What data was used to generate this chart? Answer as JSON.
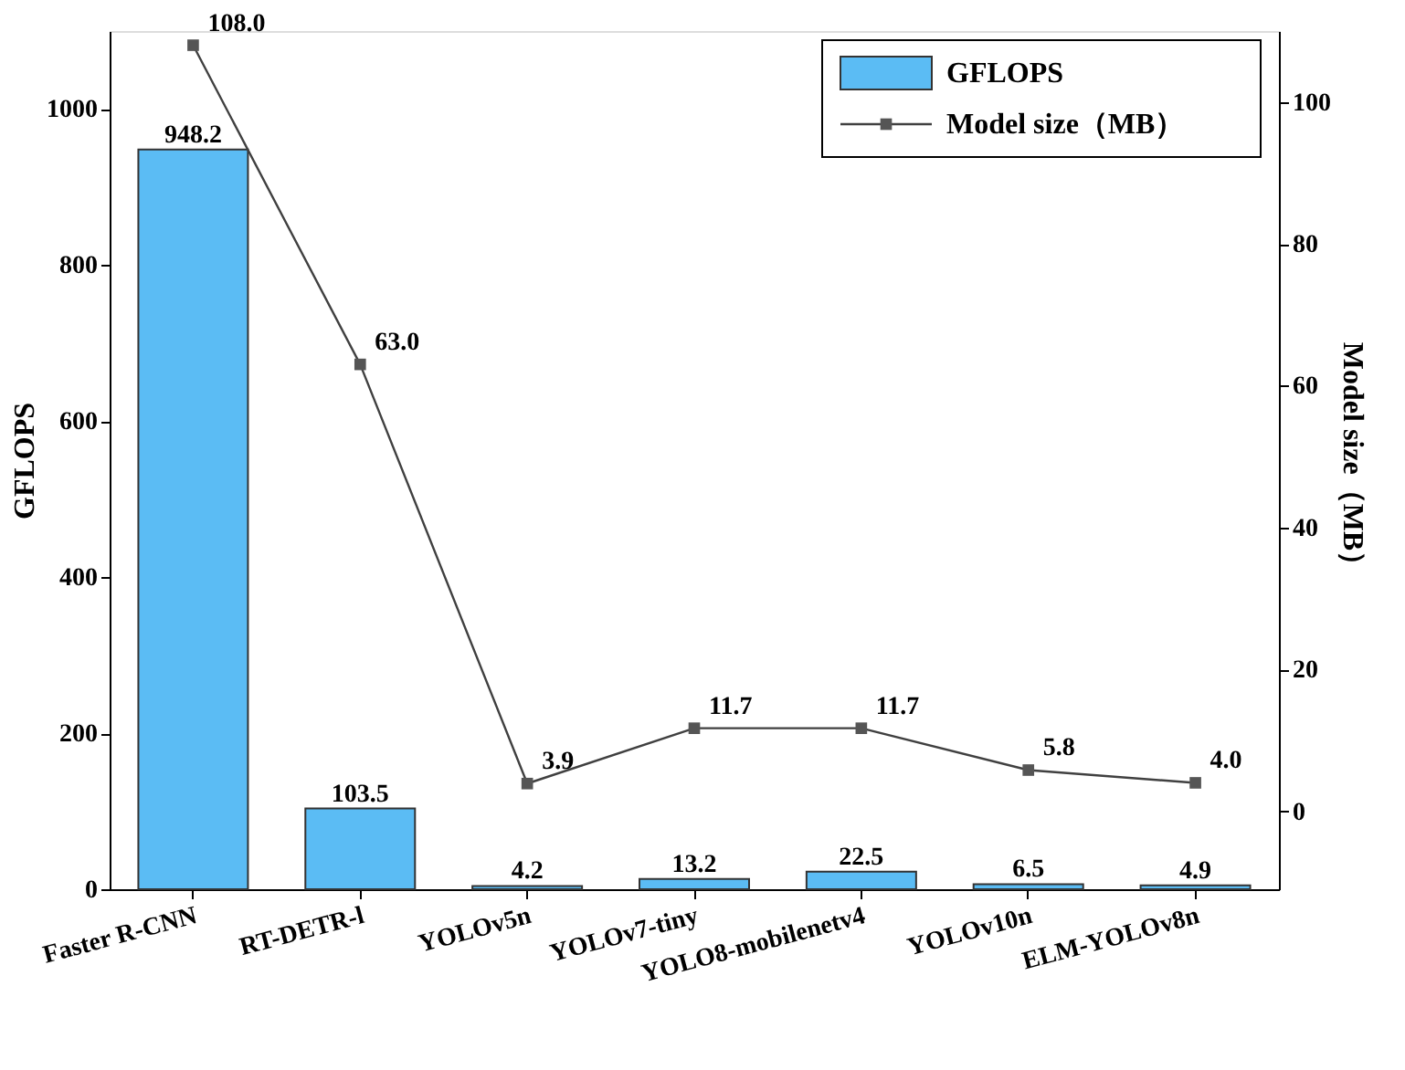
{
  "chart_data": {
    "type": "bar",
    "categories": [
      "Faster R-CNN",
      "RT-DETR-l",
      "YOLOv5n",
      "YOLOv7-tiny",
      "YOLO8-mobilenetv4",
      "YOLOv10n",
      "ELM-YOLOv8n"
    ],
    "series": [
      {
        "name": "GFLOPS",
        "color": "#5bbcf4",
        "values": [
          948.2,
          103.5,
          4.2,
          13.2,
          22.5,
          6.5,
          4.9
        ],
        "value_labels": [
          "948.2",
          "103.5",
          "4.2",
          "13.2",
          "22.5",
          "6.5",
          "4.9"
        ]
      },
      {
        "name": "Model size（MB）",
        "type": "line",
        "axis": "y2",
        "color": "#404040",
        "values": [
          108.0,
          63.0,
          3.9,
          11.7,
          11.7,
          5.8,
          4.0
        ],
        "value_labels": [
          "108.0",
          "63.0",
          "3.9",
          "11.7",
          "11.7",
          "5.8",
          "4.0"
        ]
      }
    ],
    "ylabel": "GFLOPS",
    "y2label": "Model size（MB）",
    "ylim": [
      0,
      1100
    ],
    "yticks": [
      0,
      200,
      400,
      600,
      800,
      1000
    ],
    "y2lim": [
      -11,
      110
    ],
    "y2ticks": [
      0,
      20,
      40,
      60,
      80,
      100
    ],
    "grid": false,
    "legend": "top right",
    "marker": "square",
    "line_style": "solid"
  }
}
